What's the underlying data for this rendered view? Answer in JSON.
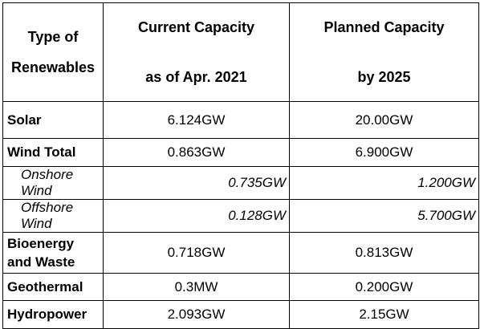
{
  "table": {
    "header": [
      [
        "Type of",
        "Renewables"
      ],
      [
        "Current Capacity",
        "as of Apr. 2021"
      ],
      [
        "Planned Capacity",
        "by 2025"
      ]
    ],
    "rows": [
      [
        "Solar",
        "6.124GW",
        "20.00GW"
      ],
      [
        "Wind Total",
        "0.863GW",
        "6.900GW"
      ],
      [
        "Onshore Wind",
        "0.735GW",
        "1.200GW"
      ],
      [
        "Offshore Wind",
        "0.128GW",
        "5.700GW"
      ],
      [
        "Bioenergy and Waste",
        "0.718GW",
        "0.813GW"
      ],
      [
        "Geothermal",
        "0.3MW",
        "0.200GW"
      ],
      [
        "Hydropower",
        "2.093GW",
        "2.15GW"
      ]
    ]
  }
}
